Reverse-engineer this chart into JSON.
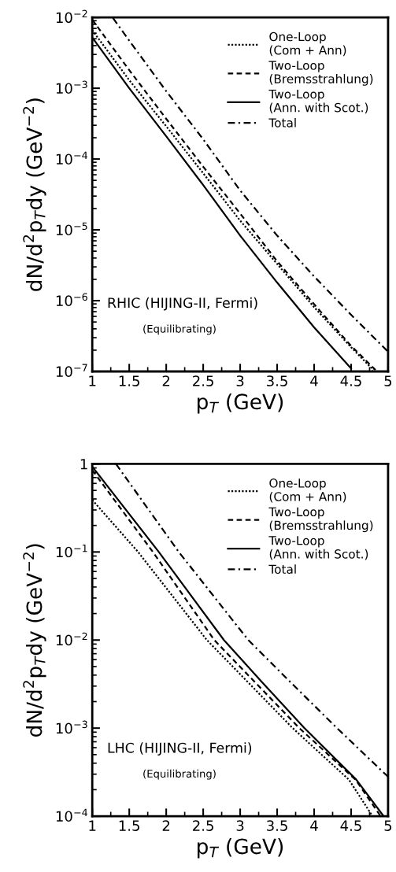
{
  "chart_data": [
    {
      "type": "line",
      "xlabel": "p$_{T}$ (GeV)",
      "ylabel": "dN/d$^{2}$p$_{T}$dy (GeV$^{−2}$)",
      "log": "y",
      "legend": "top right",
      "grid": false,
      "xlim": [
        1,
        5
      ],
      "xticks": [
        1,
        1.5,
        2,
        2.5,
        3,
        3.5,
        4,
        4.5,
        5
      ],
      "ylim": [
        1e-07,
        0.01
      ],
      "yticks": [
        {
          "value": 1e-07,
          "label": "10$^{−7}$"
        },
        {
          "value": 1e-06,
          "label": "10$^{−6}$"
        },
        {
          "value": 1e-05,
          "label": "10$^{−5}$"
        },
        {
          "value": 0.0001,
          "label": "10$^{−4}$"
        },
        {
          "value": 0.001,
          "label": "10$^{−3}$"
        },
        {
          "value": 0.01,
          "label": "10$^{−2}$"
        }
      ],
      "annotations": [
        "RHIC (HIJING-II, Fermi)",
        "(Equilibrating)"
      ],
      "series": [
        {
          "name": "One-Loop\n(Com + Ann)",
          "color": "#000000",
          "line_style": "dotted",
          "x": [
            1,
            1.5,
            2,
            2.5,
            3,
            3.5,
            4,
            4.5,
            4.8
          ],
          "values": [
            0.0066,
            0.0013,
            0.00029,
            6.3e-05,
            1.35e-05,
            3.3e-06,
            8.1e-07,
            2.2e-07,
            1.05e-07
          ]
        },
        {
          "name": "Two-Loop\n(Bremsstrahlung)",
          "color": "#000000",
          "line_style": "dashed",
          "x": [
            1,
            1.5,
            2,
            2.5,
            3,
            3.5,
            4,
            4.5,
            4.83
          ],
          "values": [
            0.0093,
            0.0018,
            0.00037,
            7.8e-05,
            1.7e-05,
            3.6e-06,
            8.9e-07,
            2.3e-07,
            1.05e-07
          ]
        },
        {
          "name": "Two-Loop\n(Ann. with Scot.)",
          "color": "#000000",
          "line_style": "solid",
          "x": [
            1,
            1.5,
            2,
            2.5,
            3,
            3.5,
            4,
            4.5
          ],
          "values": [
            0.0052,
            0.001,
            0.00021,
            4.3e-05,
            8.3e-06,
            1.8e-06,
            4.2e-07,
            1.1e-07
          ]
        },
        {
          "name": "Total",
          "color": "#000000",
          "line_style": "dashdot",
          "x": [
            1.28,
            1.5,
            2,
            2.5,
            3,
            3.5,
            4,
            4.5,
            5
          ],
          "values": [
            0.0098,
            0.0047,
            0.00091,
            0.00019,
            3.6e-05,
            8.3e-06,
            2.2e-06,
            6.3e-07,
            1.9e-07
          ]
        }
      ]
    },
    {
      "type": "line",
      "xlabel": "p$_{T}$ (GeV)",
      "ylabel": "dN/d$^{2}$p$_{T}$dy (GeV$^{−2}$)",
      "log": "y",
      "legend": "top right",
      "grid": false,
      "xlim": [
        1,
        5
      ],
      "xticks": [
        1,
        1.5,
        2,
        2.5,
        3,
        3.5,
        4,
        4.5,
        5
      ],
      "ylim": [
        0.0001,
        1
      ],
      "yticks": [
        {
          "value": 0.0001,
          "label": "10$^{−4}$"
        },
        {
          "value": 0.001,
          "label": "10$^{−3}$"
        },
        {
          "value": 0.01,
          "label": "10$^{−2}$"
        },
        {
          "value": 0.1,
          "label": "10$^{−1}$"
        },
        1
      ],
      "annotations": [
        "LHC (HIJING-II, Fermi)",
        "(Equilibrating)"
      ],
      "series": [
        {
          "name": "One-Loop\n(Com + Ann)",
          "color": "#000000",
          "line_style": "dotted",
          "x": [
            1,
            1.62,
            2.55,
            3.71,
            4.47,
            4.79
          ],
          "values": [
            0.39,
            0.1,
            0.01,
            0.001,
            0.00026,
            0.0001
          ]
        },
        {
          "name": "Two-Loop\n(Bremsstrahlung)",
          "color": "#000000",
          "line_style": "dashed",
          "x": [
            1,
            1.82,
            2.65,
            3.8,
            4.56,
            4.9
          ],
          "values": [
            0.85,
            0.1,
            0.01,
            0.001,
            0.00026,
            0.0001
          ]
        },
        {
          "name": "Two-Loop\n(Ann. with Scot.)",
          "color": "#000000",
          "line_style": "solid",
          "x": [
            1,
            1.9,
            2.78,
            3.3,
            3.87,
            4.57,
            4.94
          ],
          "values": [
            0.93,
            0.1,
            0.01,
            0.0033,
            0.001,
            0.00026,
            0.0001
          ]
        },
        {
          "name": "Total",
          "color": "#000000",
          "line_style": "dashdot",
          "x": [
            1.32,
            2.17,
            3.11,
            3.7,
            4.31,
            5
          ],
          "values": [
            1.0,
            0.1,
            0.01,
            0.0032,
            0.001,
            0.00028
          ]
        }
      ]
    }
  ]
}
